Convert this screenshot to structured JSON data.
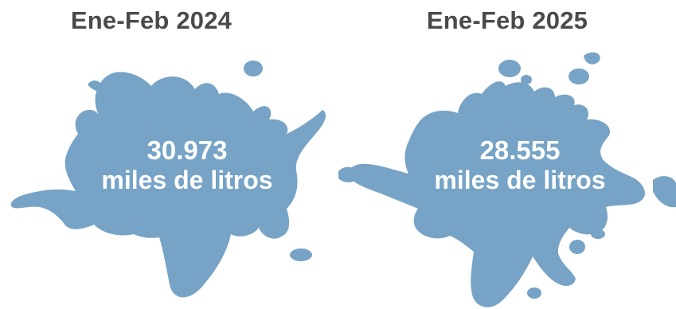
{
  "colors": {
    "splash": "#76a3c6",
    "title_text": "#4a4a4a",
    "value_text": "#ffffff",
    "background": "#ffffff"
  },
  "panels": [
    {
      "title": "Ene-Feb 2024",
      "value": "30.973",
      "unit": "miles de litros"
    },
    {
      "title": "Ene-Feb 2025",
      "value": "28.555",
      "unit": "miles de litros"
    }
  ]
}
